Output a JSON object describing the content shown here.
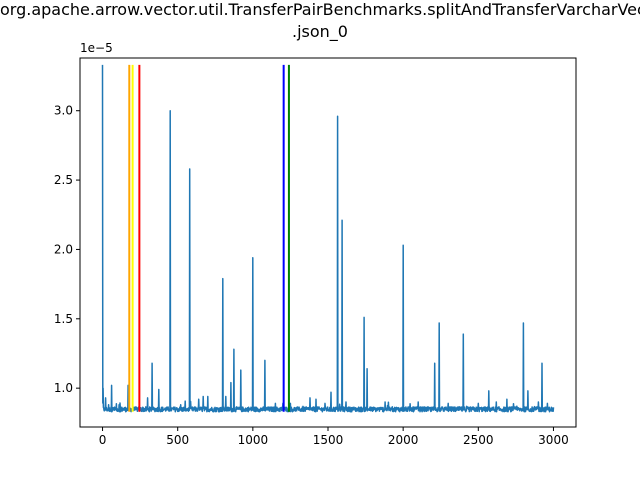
{
  "chart_data": {
    "type": "line",
    "title_line1": "org.apache.arrow.vector.util.TransferPairBenchmarks.splitAndTransferVarcharVector",
    "title_line2": ".json_0",
    "xlabel": "",
    "ylabel": "",
    "offset_text": "1e−5",
    "xlim": [
      -150,
      3150
    ],
    "ylim": [
      7.2,
      33.8
    ],
    "x_ticks": [
      0,
      500,
      1000,
      1500,
      2000,
      2500,
      3000
    ],
    "x_tick_labels": [
      "0",
      "500",
      "1000",
      "1500",
      "2000",
      "2500",
      "3000"
    ],
    "y_ticks": [
      10,
      15,
      20,
      25,
      30
    ],
    "y_tick_labels": [
      "1.0",
      "1.5",
      "2.0",
      "2.5",
      "3.0"
    ],
    "grid": false,
    "legend": false,
    "series": [
      {
        "color": "#1f77b4",
        "baseline": 8.3,
        "noise": 0.35,
        "x_max": 3000,
        "peaks": [
          [
            0,
            33.3
          ],
          [
            5,
            10.0
          ],
          [
            20,
            9.3
          ],
          [
            40,
            8.8
          ],
          [
            60,
            10.2
          ],
          [
            110,
            8.8
          ],
          [
            170,
            10.2
          ],
          [
            215,
            8.5
          ],
          [
            300,
            9.3
          ],
          [
            330,
            11.8
          ],
          [
            375,
            9.9
          ],
          [
            450,
            30.0
          ],
          [
            520,
            8.8
          ],
          [
            580,
            25.8
          ],
          [
            640,
            9.2
          ],
          [
            670,
            9.4
          ],
          [
            700,
            9.4
          ],
          [
            800,
            17.9
          ],
          [
            820,
            9.4
          ],
          [
            855,
            10.4
          ],
          [
            875,
            12.8
          ],
          [
            920,
            11.3
          ],
          [
            1000,
            19.4
          ],
          [
            1080,
            12.0
          ],
          [
            1150,
            8.9
          ],
          [
            1200,
            8.9
          ],
          [
            1250,
            8.9
          ],
          [
            1300,
            8.5
          ],
          [
            1380,
            9.3
          ],
          [
            1420,
            9.2
          ],
          [
            1480,
            8.9
          ],
          [
            1520,
            9.7
          ],
          [
            1565,
            29.6
          ],
          [
            1595,
            22.1
          ],
          [
            1620,
            9.0
          ],
          [
            1740,
            15.1
          ],
          [
            1760,
            11.4
          ],
          [
            1880,
            9.0
          ],
          [
            2000,
            20.3
          ],
          [
            2100,
            9.0
          ],
          [
            2210,
            11.8
          ],
          [
            2240,
            14.7
          ],
          [
            2300,
            8.9
          ],
          [
            2400,
            13.9
          ],
          [
            2500,
            8.9
          ],
          [
            2570,
            9.8
          ],
          [
            2620,
            9.0
          ],
          [
            2690,
            9.2
          ],
          [
            2800,
            14.7
          ],
          [
            2830,
            9.8
          ],
          [
            2900,
            9.0
          ],
          [
            2925,
            11.8
          ],
          [
            2960,
            8.9
          ]
        ]
      }
    ],
    "vlines": [
      {
        "x": 178,
        "color": "orange"
      },
      {
        "x": 200,
        "color": "yellow"
      },
      {
        "x": 245,
        "color": "red"
      },
      {
        "x": 1205,
        "color": "blue"
      },
      {
        "x": 1240,
        "color": "green"
      }
    ]
  }
}
